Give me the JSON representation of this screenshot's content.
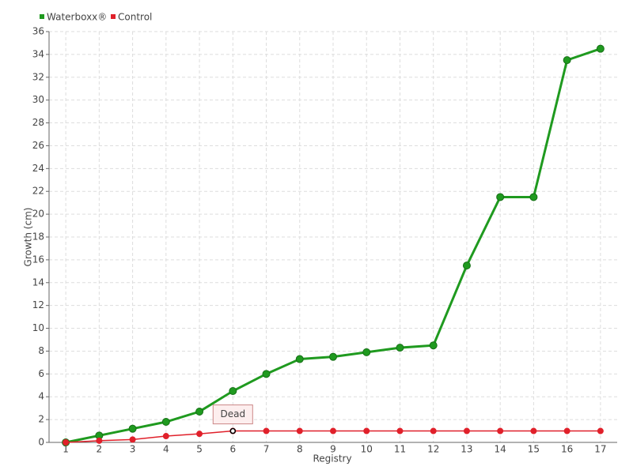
{
  "chart_data": {
    "type": "line",
    "x_label": "Registry",
    "y_label": "Growth (cm)",
    "categories": [
      "1",
      "2",
      "3",
      "4",
      "5",
      "6",
      "7",
      "8",
      "9",
      "10",
      "11",
      "12",
      "13",
      "14",
      "15",
      "16",
      "17"
    ],
    "series": [
      {
        "name": "Waterboxx®",
        "color": "#1f9a1f",
        "values": [
          0,
          0.6,
          1.2,
          1.8,
          2.7,
          4.5,
          6,
          7.3,
          7.5,
          7.9,
          8.3,
          8.5,
          15.5,
          21.5,
          21.5,
          33.5,
          34.5
        ]
      },
      {
        "name": "Control",
        "color": "#e0202a",
        "values": [
          0,
          0.15,
          0.25,
          0.55,
          0.75,
          1,
          1,
          1,
          1,
          1,
          1,
          1,
          1,
          1,
          1,
          1,
          1
        ]
      }
    ],
    "annotation": {
      "text": "Dead",
      "x": "6"
    },
    "ylim": [
      0,
      36
    ],
    "yticks": [
      0,
      2,
      4,
      6,
      8,
      10,
      12,
      14,
      16,
      18,
      20,
      22,
      24,
      26,
      28,
      30,
      32,
      34,
      36
    ],
    "grid": true,
    "legend": "top-left"
  }
}
